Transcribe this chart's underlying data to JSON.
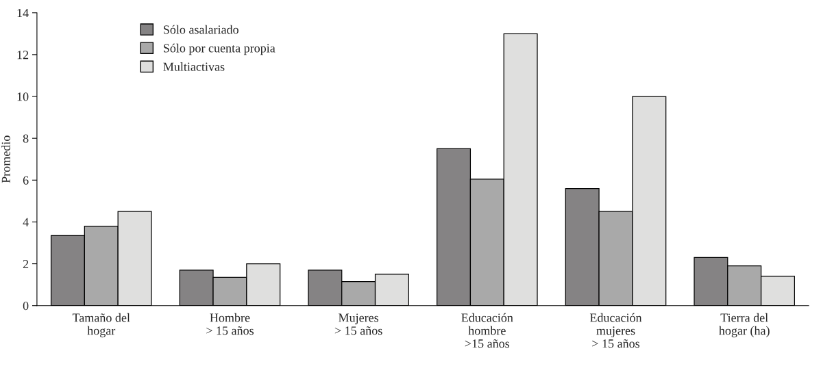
{
  "chart_data": {
    "type": "bar",
    "ylabel": "Promedio",
    "categories": [
      "Tamaño del\nhogar",
      "Hombre\n> 15 años",
      "Mujeres\n> 15 años",
      "Educación\nhombre\n>15 años",
      "Educación\nmujeres\n> 15 años",
      "Tierra del\nhogar (ha)"
    ],
    "series": [
      {
        "name": "Sólo asalariado",
        "color": "#858384",
        "values": [
          3.35,
          1.7,
          1.7,
          7.5,
          5.6,
          2.3
        ]
      },
      {
        "name": "Sólo por cuenta propia",
        "color": "#a9a9a9",
        "values": [
          3.8,
          1.35,
          1.15,
          6.05,
          4.5,
          1.9
        ]
      },
      {
        "name": "Multiactivas",
        "color": "#dfdfde",
        "values": [
          4.5,
          2.0,
          1.5,
          13.0,
          10.0,
          1.4
        ]
      }
    ],
    "ylim": [
      0,
      14
    ],
    "yticks": [
      0,
      2,
      4,
      6,
      8,
      10,
      12,
      14
    ],
    "grid": false,
    "legend": "top left"
  }
}
